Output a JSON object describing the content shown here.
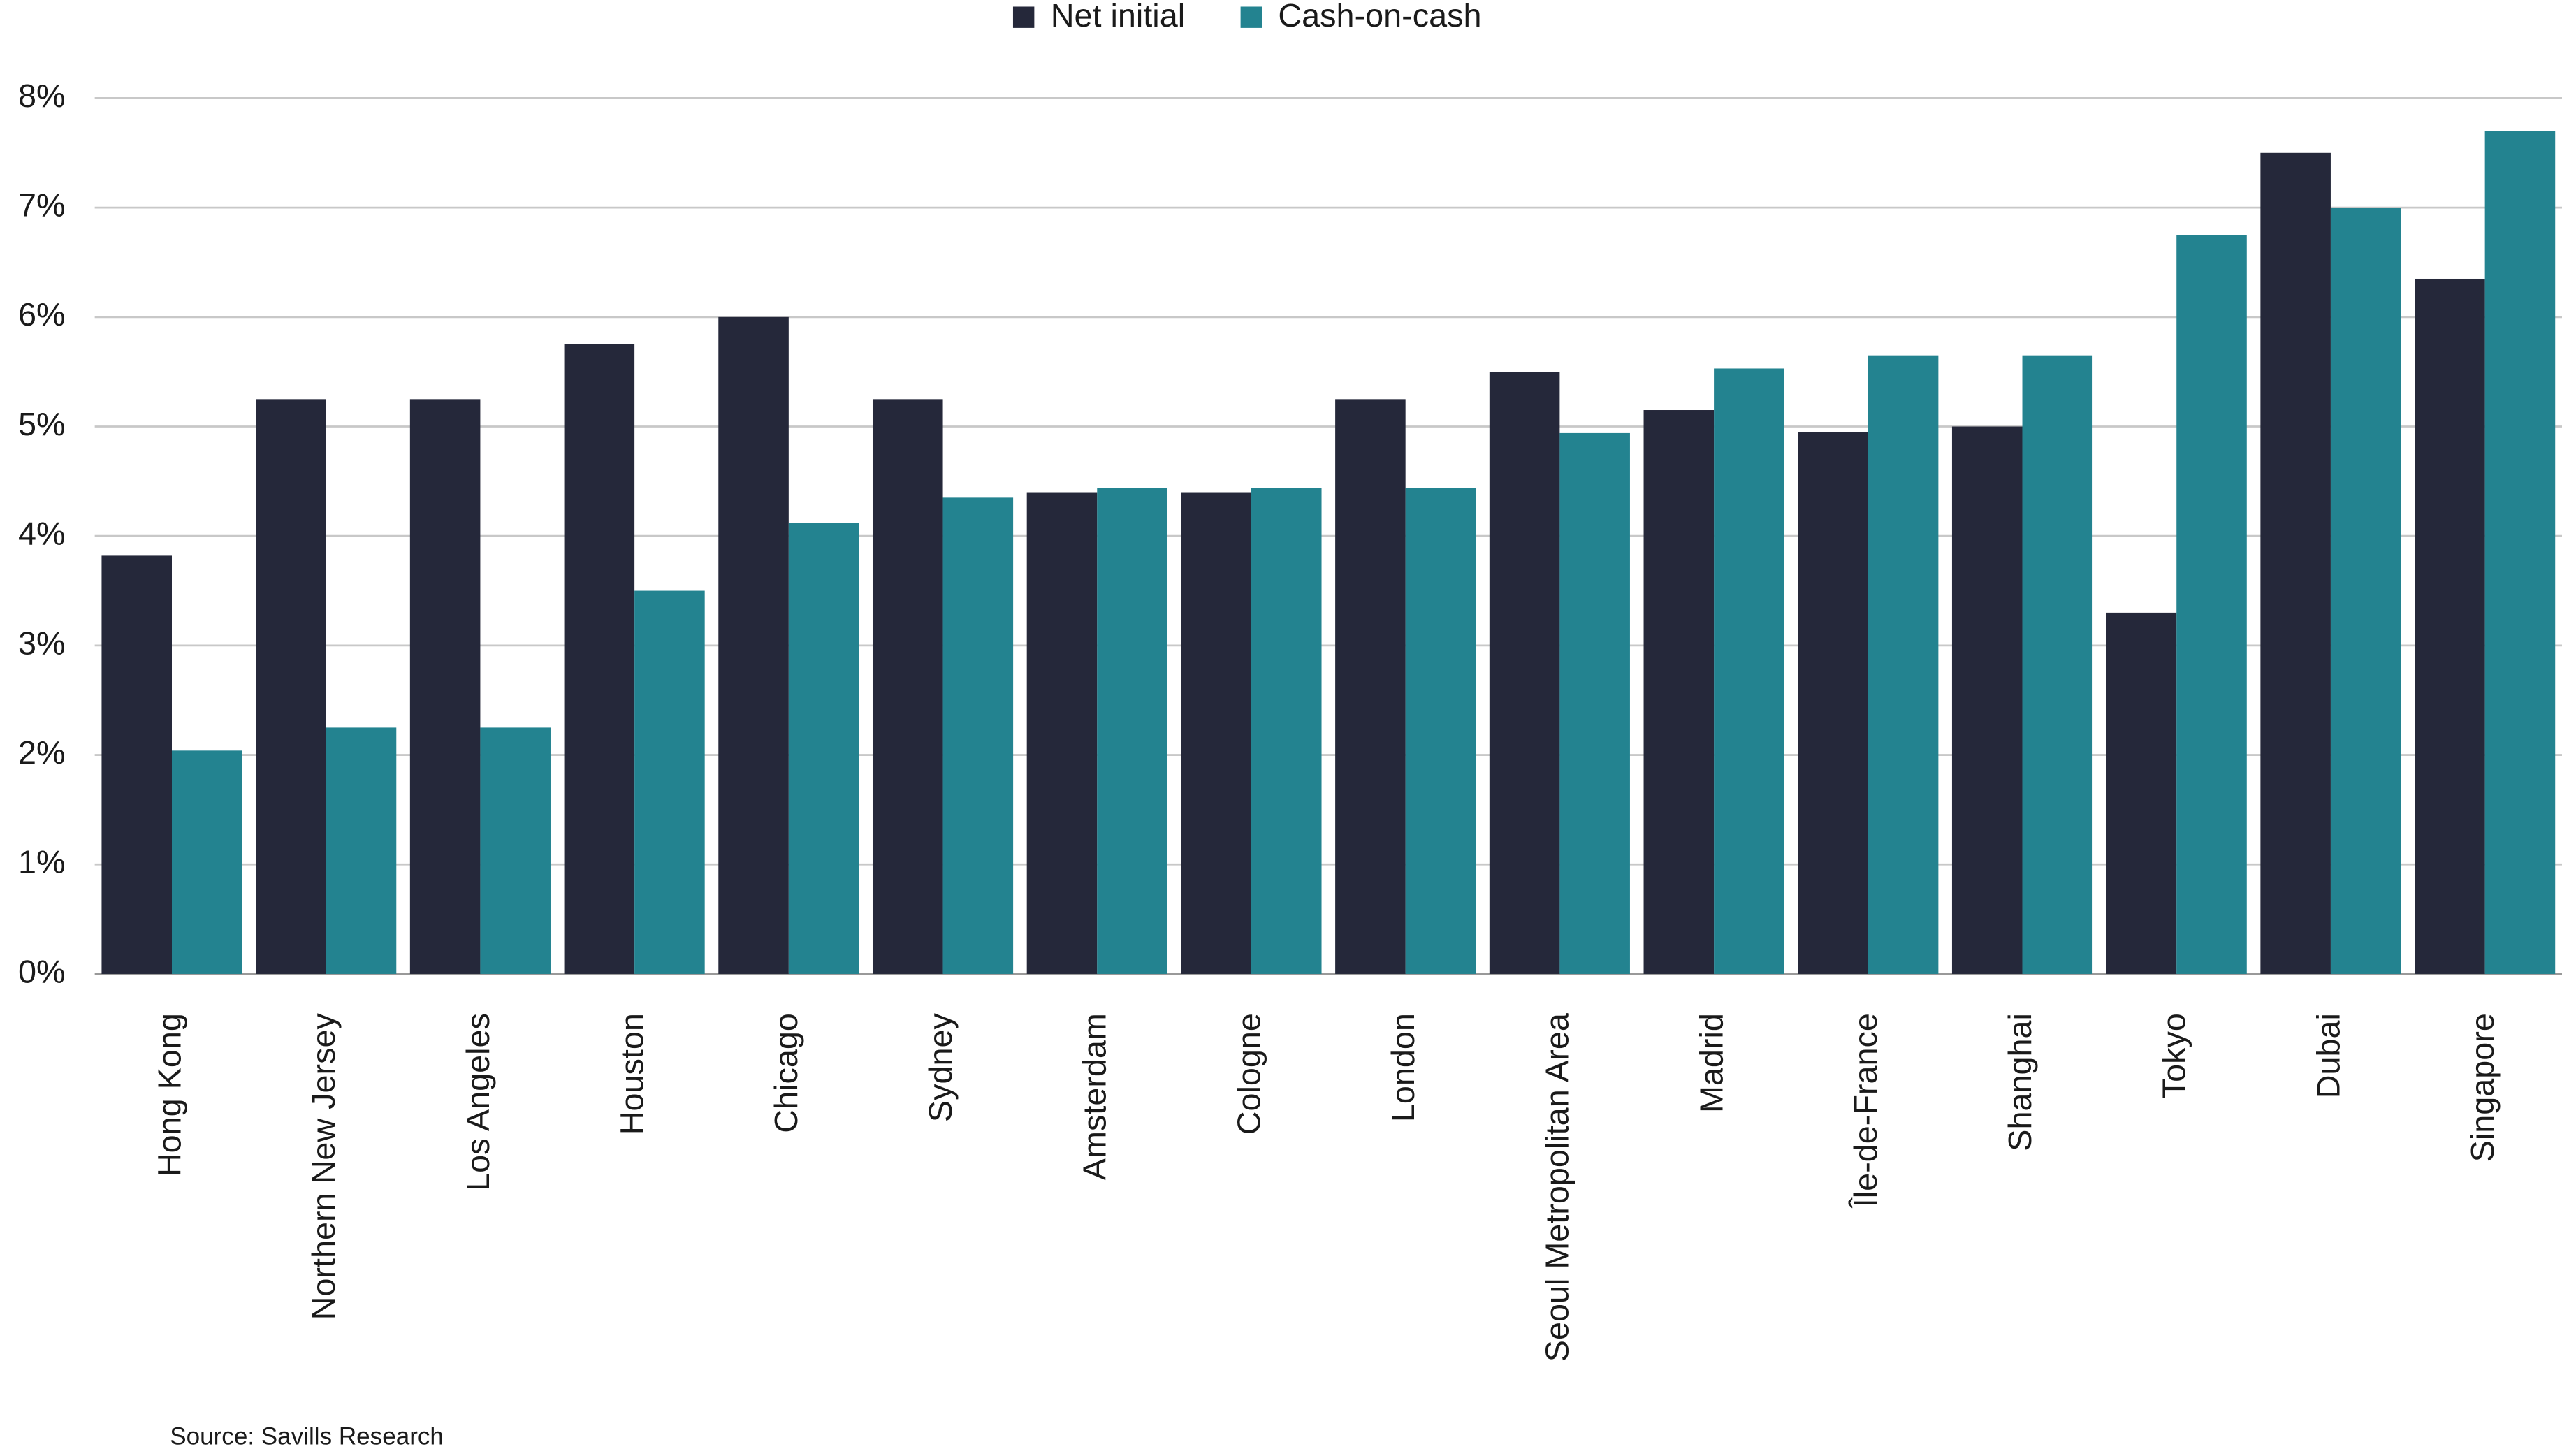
{
  "chart_data": {
    "type": "bar",
    "categories": [
      "Hong Kong",
      "Northern New Jersey",
      "Los Angeles",
      "Houston",
      "Chicago",
      "Sydney",
      "Amsterdam",
      "Cologne",
      "London",
      "Seoul Metropolitan Area",
      "Madrid",
      "Île-de-France",
      "Shanghai",
      "Tokyo",
      "Dubai",
      "Singapore"
    ],
    "series": [
      {
        "name": "Net initial",
        "color": "#25283a",
        "values": [
          3.82,
          5.25,
          5.25,
          5.75,
          6.0,
          5.25,
          4.4,
          4.4,
          5.25,
          5.5,
          5.15,
          4.95,
          5.0,
          3.3,
          7.5,
          6.35
        ]
      },
      {
        "name": "Cash-on-cash",
        "color": "#238390",
        "values": [
          2.04,
          2.25,
          2.25,
          3.5,
          4.12,
          4.35,
          4.44,
          4.44,
          4.44,
          4.94,
          5.53,
          5.65,
          5.65,
          6.75,
          7.0,
          7.7
        ]
      }
    ],
    "ylim": [
      0,
      8
    ],
    "yticks": [
      {
        "value": 0,
        "label": "0%"
      },
      {
        "value": 1,
        "label": "1%"
      },
      {
        "value": 2,
        "label": "2%"
      },
      {
        "value": 3,
        "label": "3%"
      },
      {
        "value": 4,
        "label": "4%"
      },
      {
        "value": 5,
        "label": "5%"
      },
      {
        "value": 6,
        "label": "6%"
      },
      {
        "value": 7,
        "label": "7%"
      },
      {
        "value": 8,
        "label": "8%"
      }
    ],
    "grid": true,
    "legend": "top",
    "source": "Source: Savills Research"
  }
}
